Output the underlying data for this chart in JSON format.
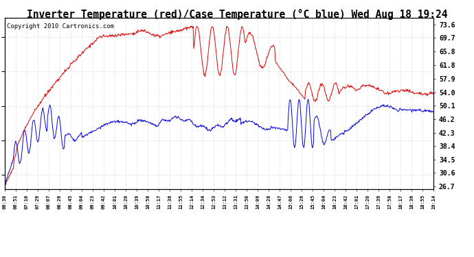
{
  "title": "Inverter Temperature (red)/Case Temperature (°C blue) Wed Aug 18 19:24",
  "copyright": "Copyright 2010 Cartronics.com",
  "ylabel_right_ticks": [
    73.6,
    69.7,
    65.8,
    61.8,
    57.9,
    54.0,
    50.1,
    46.2,
    42.3,
    38.4,
    34.5,
    30.6,
    26.7
  ],
  "ylim": [
    26.0,
    75.5
  ],
  "xtick_labels": [
    "06:30",
    "06:51",
    "07:10",
    "07:29",
    "08:07",
    "08:26",
    "08:45",
    "09:04",
    "09:23",
    "09:42",
    "10:01",
    "10:20",
    "10:39",
    "10:58",
    "11:17",
    "11:36",
    "11:55",
    "12:14",
    "12:34",
    "12:53",
    "13:12",
    "13:31",
    "13:50",
    "14:09",
    "14:28",
    "14:47",
    "15:06",
    "15:26",
    "15:45",
    "16:04",
    "16:23",
    "16:42",
    "17:01",
    "17:20",
    "17:39",
    "17:58",
    "18:17",
    "18:36",
    "18:55",
    "19:14"
  ],
  "background_color": "#ffffff",
  "plot_bg_color": "#ffffff",
  "red_color": "#dd0000",
  "blue_color": "#0000dd",
  "grid_color": "#cccccc",
  "title_fontsize": 10.5,
  "copyright_fontsize": 6.5
}
